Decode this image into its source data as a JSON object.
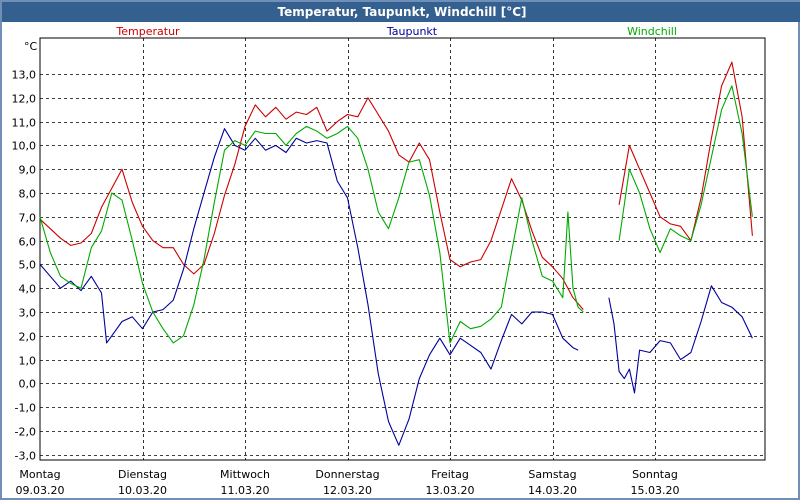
{
  "window": {
    "title": "Temperatur, Taupunkt, Windchill [°C]"
  },
  "chart_data": {
    "type": "line",
    "title": "Temperatur, Taupunkt, Windchill [°C]",
    "ylabel": "°C",
    "ylim": [
      -3.6,
      14.2
    ],
    "yticks": [
      "13,0",
      "12,0",
      "11,0",
      "10,0",
      "9,0",
      "8,0",
      "7,0",
      "6,0",
      "5,0",
      "4,0",
      "3,0",
      "2,0",
      "1,0",
      "0,0",
      "-1,0",
      "-2,0",
      "-3,0"
    ],
    "x_axis": {
      "type": "date",
      "start": "09.03.20",
      "end": "16.03.20"
    },
    "day_labels": [
      {
        "weekday": "Montag",
        "date": "09.03.20"
      },
      {
        "weekday": "Dienstag",
        "date": "10.03.20"
      },
      {
        "weekday": "Mittwoch",
        "date": "11.03.20"
      },
      {
        "weekday": "Donnerstag",
        "date": "12.03.20"
      },
      {
        "weekday": "Freitag",
        "date": "13.03.20"
      },
      {
        "weekday": "Samstag",
        "date": "14.03.20"
      },
      {
        "weekday": "Sonntag",
        "date": "15.03.20"
      }
    ],
    "grid": true,
    "x_unit": "days since 09.03.20 00:00",
    "series": [
      {
        "name": "Temperatur",
        "color": "#cc0000",
        "points": [
          [
            0,
            6.9
          ],
          [
            0.1,
            6.5
          ],
          [
            0.2,
            6.1
          ],
          [
            0.3,
            5.8
          ],
          [
            0.4,
            5.9
          ],
          [
            0.5,
            6.3
          ],
          [
            0.6,
            7.4
          ],
          [
            0.7,
            8.2
          ],
          [
            0.8,
            9.0
          ],
          [
            0.9,
            7.6
          ],
          [
            1.0,
            6.6
          ],
          [
            1.1,
            6.0
          ],
          [
            1.2,
            5.7
          ],
          [
            1.3,
            5.7
          ],
          [
            1.4,
            5.0
          ],
          [
            1.5,
            4.6
          ],
          [
            1.6,
            5.0
          ],
          [
            1.7,
            6.3
          ],
          [
            1.8,
            7.9
          ],
          [
            1.9,
            9.2
          ],
          [
            2.0,
            10.8
          ],
          [
            2.1,
            11.7
          ],
          [
            2.2,
            11.2
          ],
          [
            2.3,
            11.6
          ],
          [
            2.4,
            11.1
          ],
          [
            2.5,
            11.4
          ],
          [
            2.6,
            11.3
          ],
          [
            2.7,
            11.6
          ],
          [
            2.8,
            10.6
          ],
          [
            2.9,
            11.0
          ],
          [
            3.0,
            11.3
          ],
          [
            3.1,
            11.2
          ],
          [
            3.2,
            12.0
          ],
          [
            3.3,
            11.3
          ],
          [
            3.4,
            10.6
          ],
          [
            3.5,
            9.6
          ],
          [
            3.6,
            9.3
          ],
          [
            3.7,
            10.1
          ],
          [
            3.8,
            9.4
          ],
          [
            3.9,
            7.2
          ],
          [
            4.0,
            5.2
          ],
          [
            4.1,
            4.9
          ],
          [
            4.2,
            5.1
          ],
          [
            4.3,
            5.2
          ],
          [
            4.4,
            6.0
          ],
          [
            4.5,
            7.3
          ],
          [
            4.6,
            8.6
          ],
          [
            4.7,
            7.7
          ],
          [
            4.8,
            6.4
          ],
          [
            4.9,
            5.3
          ],
          [
            5.0,
            4.9
          ],
          [
            5.1,
            4.4
          ],
          [
            5.2,
            3.6
          ],
          [
            5.3,
            3.1
          ],
          null,
          [
            5.65,
            7.5
          ],
          [
            5.75,
            10.0
          ],
          [
            5.85,
            9.0
          ],
          [
            5.95,
            8.0
          ],
          [
            6.05,
            7.0
          ],
          [
            6.15,
            6.7
          ],
          [
            6.25,
            6.6
          ],
          [
            6.35,
            6.0
          ],
          [
            6.45,
            7.8
          ],
          [
            6.55,
            10.3
          ],
          [
            6.65,
            12.5
          ],
          [
            6.75,
            13.5
          ],
          [
            6.85,
            11.2
          ],
          [
            6.95,
            6.2
          ]
        ]
      },
      {
        "name": "Taupunkt",
        "color": "#000099",
        "points": [
          [
            0,
            5.0
          ],
          [
            0.1,
            4.5
          ],
          [
            0.2,
            4.0
          ],
          [
            0.3,
            4.3
          ],
          [
            0.4,
            3.9
          ],
          [
            0.5,
            4.5
          ],
          [
            0.6,
            3.8
          ],
          [
            0.65,
            1.7
          ],
          [
            0.7,
            2.0
          ],
          [
            0.8,
            2.6
          ],
          [
            0.9,
            2.8
          ],
          [
            1.0,
            2.3
          ],
          [
            1.1,
            3.0
          ],
          [
            1.2,
            3.1
          ],
          [
            1.3,
            3.5
          ],
          [
            1.4,
            4.8
          ],
          [
            1.5,
            6.5
          ],
          [
            1.6,
            8.0
          ],
          [
            1.7,
            9.5
          ],
          [
            1.8,
            10.7
          ],
          [
            1.9,
            10.0
          ],
          [
            2.0,
            9.8
          ],
          [
            2.1,
            10.3
          ],
          [
            2.2,
            9.8
          ],
          [
            2.3,
            10.0
          ],
          [
            2.4,
            9.7
          ],
          [
            2.5,
            10.3
          ],
          [
            2.6,
            10.1
          ],
          [
            2.7,
            10.2
          ],
          [
            2.8,
            10.1
          ],
          [
            2.9,
            8.5
          ],
          [
            3.0,
            7.8
          ],
          [
            3.1,
            5.7
          ],
          [
            3.2,
            3.3
          ],
          [
            3.3,
            0.4
          ],
          [
            3.4,
            -1.6
          ],
          [
            3.5,
            -2.6
          ],
          [
            3.6,
            -1.5
          ],
          [
            3.7,
            0.2
          ],
          [
            3.8,
            1.2
          ],
          [
            3.9,
            1.9
          ],
          [
            4.0,
            1.2
          ],
          [
            4.1,
            1.9
          ],
          [
            4.2,
            1.6
          ],
          [
            4.3,
            1.3
          ],
          [
            4.4,
            0.6
          ],
          [
            4.5,
            1.8
          ],
          [
            4.6,
            2.9
          ],
          [
            4.7,
            2.5
          ],
          [
            4.8,
            3.0
          ],
          [
            4.9,
            3.0
          ],
          [
            5.0,
            2.9
          ],
          [
            5.1,
            1.9
          ],
          [
            5.2,
            1.5
          ],
          [
            5.25,
            1.4
          ],
          null,
          [
            5.55,
            3.6
          ],
          [
            5.6,
            2.5
          ],
          [
            5.65,
            0.5
          ],
          [
            5.7,
            0.2
          ],
          [
            5.75,
            0.6
          ],
          [
            5.8,
            -0.4
          ],
          [
            5.85,
            1.4
          ],
          [
            5.95,
            1.3
          ],
          [
            6.05,
            1.8
          ],
          [
            6.15,
            1.7
          ],
          [
            6.25,
            1.0
          ],
          [
            6.35,
            1.3
          ],
          [
            6.45,
            2.6
          ],
          [
            6.55,
            4.1
          ],
          [
            6.65,
            3.4
          ],
          [
            6.75,
            3.2
          ],
          [
            6.85,
            2.8
          ],
          [
            6.95,
            1.9
          ]
        ]
      },
      {
        "name": "Windchill",
        "color": "#00aa00",
        "points": [
          [
            0,
            7.0
          ],
          [
            0.1,
            5.5
          ],
          [
            0.2,
            4.5
          ],
          [
            0.3,
            4.2
          ],
          [
            0.4,
            4.0
          ],
          [
            0.5,
            5.7
          ],
          [
            0.6,
            6.4
          ],
          [
            0.7,
            8.0
          ],
          [
            0.8,
            7.7
          ],
          [
            0.9,
            6.0
          ],
          [
            1.0,
            4.2
          ],
          [
            1.1,
            3.0
          ],
          [
            1.2,
            2.3
          ],
          [
            1.3,
            1.7
          ],
          [
            1.4,
            2.0
          ],
          [
            1.5,
            3.3
          ],
          [
            1.6,
            5.2
          ],
          [
            1.7,
            7.6
          ],
          [
            1.8,
            9.8
          ],
          [
            1.9,
            10.2
          ],
          [
            2.0,
            10.0
          ],
          [
            2.1,
            10.6
          ],
          [
            2.2,
            10.5
          ],
          [
            2.3,
            10.5
          ],
          [
            2.4,
            10.0
          ],
          [
            2.5,
            10.5
          ],
          [
            2.6,
            10.8
          ],
          [
            2.7,
            10.6
          ],
          [
            2.8,
            10.3
          ],
          [
            2.9,
            10.5
          ],
          [
            3.0,
            10.8
          ],
          [
            3.1,
            10.3
          ],
          [
            3.2,
            9.0
          ],
          [
            3.3,
            7.2
          ],
          [
            3.4,
            6.5
          ],
          [
            3.5,
            7.8
          ],
          [
            3.6,
            9.3
          ],
          [
            3.7,
            9.4
          ],
          [
            3.8,
            7.9
          ],
          [
            3.9,
            5.5
          ],
          [
            4.0,
            1.7
          ],
          [
            4.1,
            2.6
          ],
          [
            4.2,
            2.3
          ],
          [
            4.3,
            2.4
          ],
          [
            4.4,
            2.7
          ],
          [
            4.5,
            3.2
          ],
          [
            4.6,
            5.5
          ],
          [
            4.7,
            7.8
          ],
          [
            4.8,
            6.0
          ],
          [
            4.9,
            4.5
          ],
          [
            5.0,
            4.3
          ],
          [
            5.1,
            3.6
          ],
          [
            5.15,
            7.2
          ],
          [
            5.2,
            4.0
          ],
          [
            5.25,
            3.2
          ],
          [
            5.3,
            3.0
          ],
          null,
          [
            5.65,
            6.0
          ],
          [
            5.75,
            9.0
          ],
          [
            5.85,
            8.0
          ],
          [
            5.95,
            6.5
          ],
          [
            6.05,
            5.5
          ],
          [
            6.15,
            6.5
          ],
          [
            6.25,
            6.2
          ],
          [
            6.35,
            6.0
          ],
          [
            6.45,
            7.5
          ],
          [
            6.55,
            9.5
          ],
          [
            6.65,
            11.5
          ],
          [
            6.75,
            12.5
          ],
          [
            6.85,
            10.5
          ],
          [
            6.95,
            7.0
          ]
        ]
      }
    ]
  }
}
